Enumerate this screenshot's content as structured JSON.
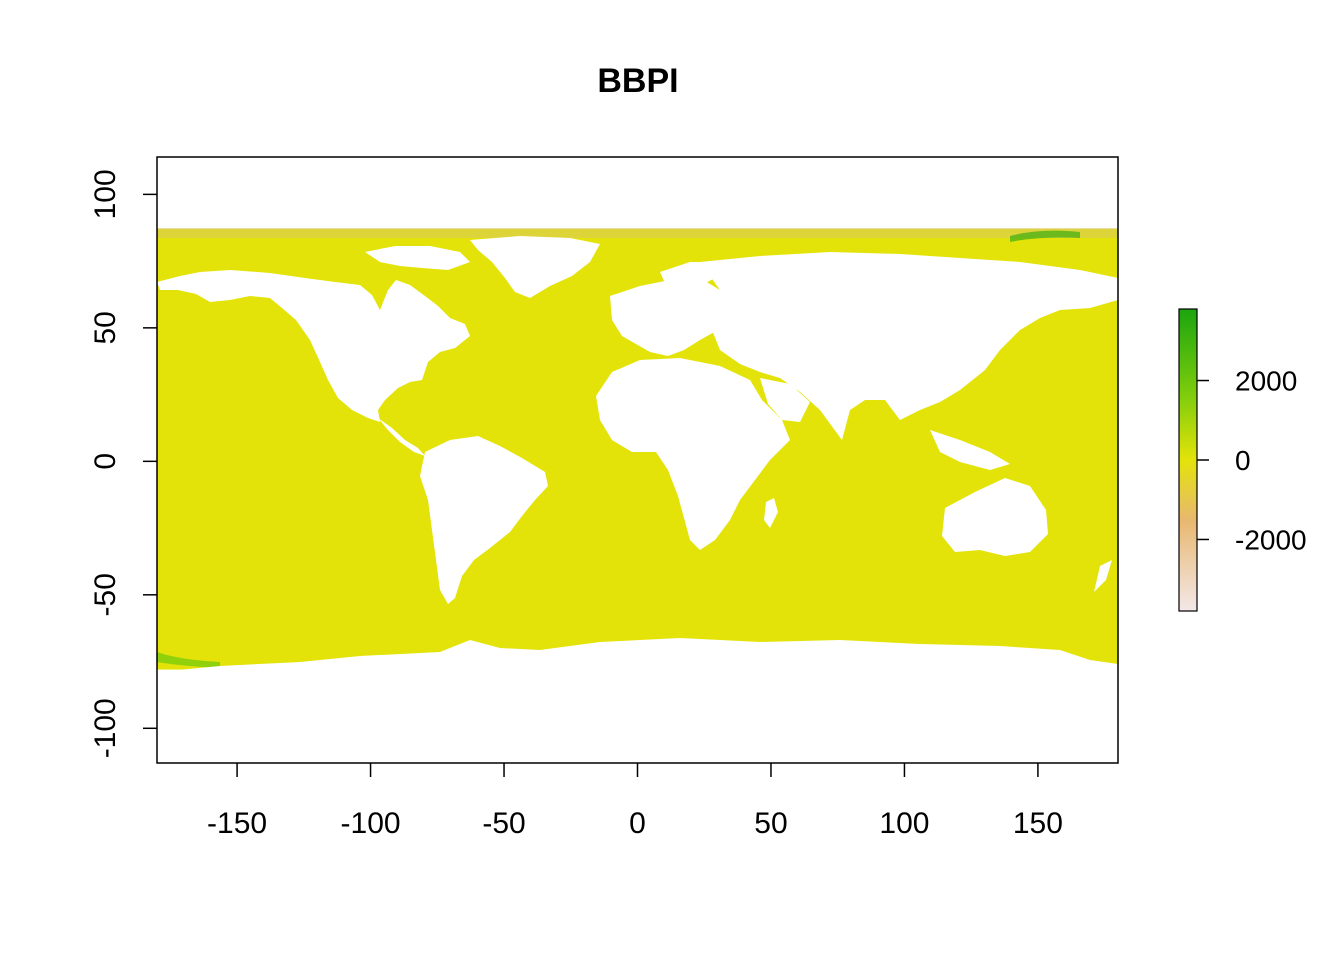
{
  "chart_data": {
    "type": "heatmap",
    "title": "BBPI",
    "xlabel": "",
    "ylabel": "",
    "xlim": [
      -180,
      180
    ],
    "ylim": [
      -113,
      114
    ],
    "x_ticks": [
      -150,
      -100,
      -50,
      0,
      50,
      100,
      150
    ],
    "y_ticks": [
      100,
      50,
      0,
      -50,
      -100
    ],
    "data_extent": {
      "lon": [
        -180,
        180
      ],
      "lat": [
        -78,
        87
      ]
    },
    "colorbar": {
      "ticks": [
        2000,
        0,
        -2000
      ],
      "range": [
        -3800,
        3800
      ],
      "colors": {
        "min": "#f3e8e8",
        "low": "#e8b870",
        "mid": "#e3e30a",
        "high": "#7ccc0c",
        "max": "#1ca50e"
      }
    },
    "land_color": "#ffffff",
    "ocean_dominant_color": "#e3e30a"
  }
}
